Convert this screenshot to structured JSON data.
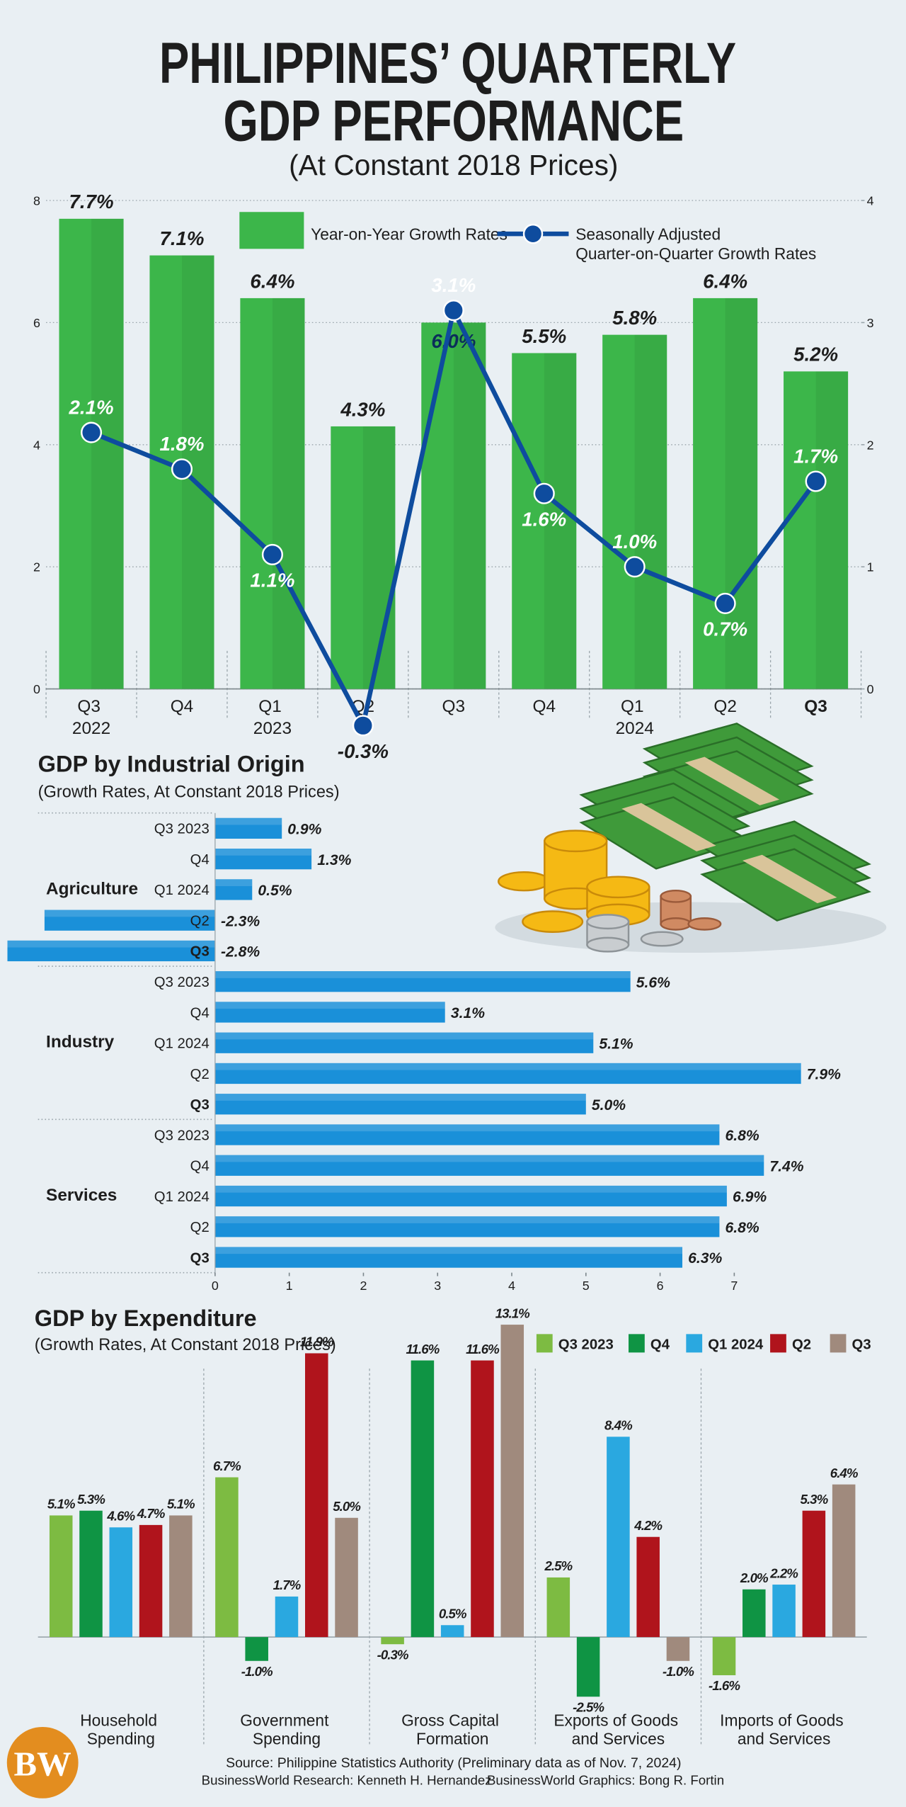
{
  "title": "PHILIPPINES’ QUARTERLY\nGDP PERFORMANCE",
  "subtitle": "(At Constant 2018 Prices)",
  "chart_data": [
    {
      "type": "bar_line",
      "categories": [
        "Q3\n2022",
        "Q4",
        "Q1\n2023",
        "Q2",
        "Q3",
        "Q4",
        "Q1\n2024",
        "Q2",
        "Q3"
      ],
      "series": [
        {
          "name": "Year-on-Year Growth Rates",
          "type": "bar",
          "color": "#3cb64a",
          "values": [
            7.7,
            7.1,
            6.4,
            4.3,
            6.0,
            5.5,
            5.8,
            6.4,
            5.2
          ],
          "value_labels": [
            "7.7%",
            "7.1%",
            "6.4%",
            "4.3%",
            "6.0%",
            "5.5%",
            "5.8%",
            "6.4%",
            "5.2%"
          ]
        },
        {
          "name": "Seasonally Adjusted\nQuarter-on-Quarter Growth Rates",
          "type": "line",
          "axis": "y2",
          "color": "#0e4c9e",
          "values": [
            2.1,
            1.8,
            1.1,
            -0.3,
            3.1,
            1.6,
            1.0,
            0.7,
            1.7
          ],
          "value_labels": [
            "2.1%",
            "1.8%",
            "1.1%",
            "-0.3%",
            "3.1%",
            "1.6%",
            "1.0%",
            "0.7%",
            "1.7%"
          ]
        }
      ],
      "ylim": [
        0,
        8
      ],
      "yticks": [
        0,
        2,
        4,
        6,
        8
      ],
      "y2lim": [
        0,
        4
      ],
      "y2ticks": [
        0,
        1,
        2,
        3,
        4
      ],
      "grid": true
    },
    {
      "type": "hbar",
      "title": "GDP by Industrial Origin",
      "subtitle": "(Growth Rates, At Constant 2018 Prices)",
      "color": "#1a90d9",
      "groups": [
        {
          "name": "Agriculture",
          "categories": [
            "Q3 2023",
            "Q4",
            "Q1 2024",
            "Q2",
            "Q3"
          ],
          "values": [
            0.9,
            1.3,
            0.5,
            -2.3,
            -2.8
          ],
          "value_labels": [
            "0.9%",
            "1.3%",
            "0.5%",
            "-2.3%",
            "-2.8%"
          ]
        },
        {
          "name": "Industry",
          "categories": [
            "Q3 2023",
            "Q4",
            "Q1 2024",
            "Q2",
            "Q3"
          ],
          "values": [
            5.6,
            3.1,
            5.1,
            7.9,
            5.0
          ],
          "value_labels": [
            "5.6%",
            "3.1%",
            "5.1%",
            "7.9%",
            "5.0%"
          ]
        },
        {
          "name": "Services",
          "categories": [
            "Q3 2023",
            "Q4",
            "Q1 2024",
            "Q2",
            "Q3"
          ],
          "values": [
            6.8,
            7.4,
            6.9,
            6.8,
            6.3
          ],
          "value_labels": [
            "6.8%",
            "7.4%",
            "6.9%",
            "6.8%",
            "6.3%"
          ]
        }
      ],
      "xlim": [
        -2.9,
        9.3
      ],
      "xticks": [
        0,
        1,
        2,
        3,
        4,
        5,
        6,
        7
      ]
    },
    {
      "type": "grouped_bar",
      "title": "GDP by Expenditure",
      "subtitle": "(Growth Rates, At Constant 2018 Prices)",
      "categories": [
        "Household\nSpending",
        "Government\nSpending",
        "Gross Capital\nFormation",
        "Exports of Goods\nand Services",
        "Imports of Goods\nand Services"
      ],
      "series": [
        {
          "name": "Q3 2023",
          "color": "#7dbb42",
          "values": [
            5.1,
            6.7,
            -0.3,
            2.5,
            -1.6
          ],
          "value_labels": [
            "5.1%",
            "6.7%",
            "-0.3%",
            "2.5%",
            "-1.6%"
          ]
        },
        {
          "name": "Q4",
          "color": "#0f9444",
          "values": [
            5.3,
            -1.0,
            11.6,
            -2.5,
            2.0
          ],
          "value_labels": [
            "5.3%",
            "-1.0%",
            "11.6%",
            "-2.5%",
            "2.0%"
          ]
        },
        {
          "name": "Q1 2024",
          "color": "#2aa8e0",
          "values": [
            4.6,
            1.7,
            0.5,
            8.4,
            2.2
          ],
          "value_labels": [
            "4.6%",
            "1.7%",
            "0.5%",
            "8.4%",
            "2.2%"
          ]
        },
        {
          "name": "Q2",
          "color": "#b0141c",
          "values": [
            4.7,
            11.9,
            11.6,
            4.2,
            5.3
          ],
          "value_labels": [
            "4.7%",
            "11.9%",
            "11.6%",
            "4.2%",
            "5.3%"
          ]
        },
        {
          "name": "Q3",
          "color": "#a08a7d",
          "values": [
            5.1,
            5.0,
            13.1,
            -1.0,
            6.4
          ],
          "value_labels": [
            "5.1%",
            "5.0%",
            "13.1%",
            "-1.0%",
            "6.4%"
          ]
        }
      ],
      "ylim": [
        -3,
        14
      ]
    }
  ],
  "footer": {
    "source": "Source: Philippine Statistics Authority (Preliminary data as of Nov. 7, 2024)",
    "research": "BusinessWorld Research: Kenneth H. Hernandez",
    "graphics": "BusinessWorld Graphics: Bong R. Fortin"
  },
  "logo": "BW"
}
